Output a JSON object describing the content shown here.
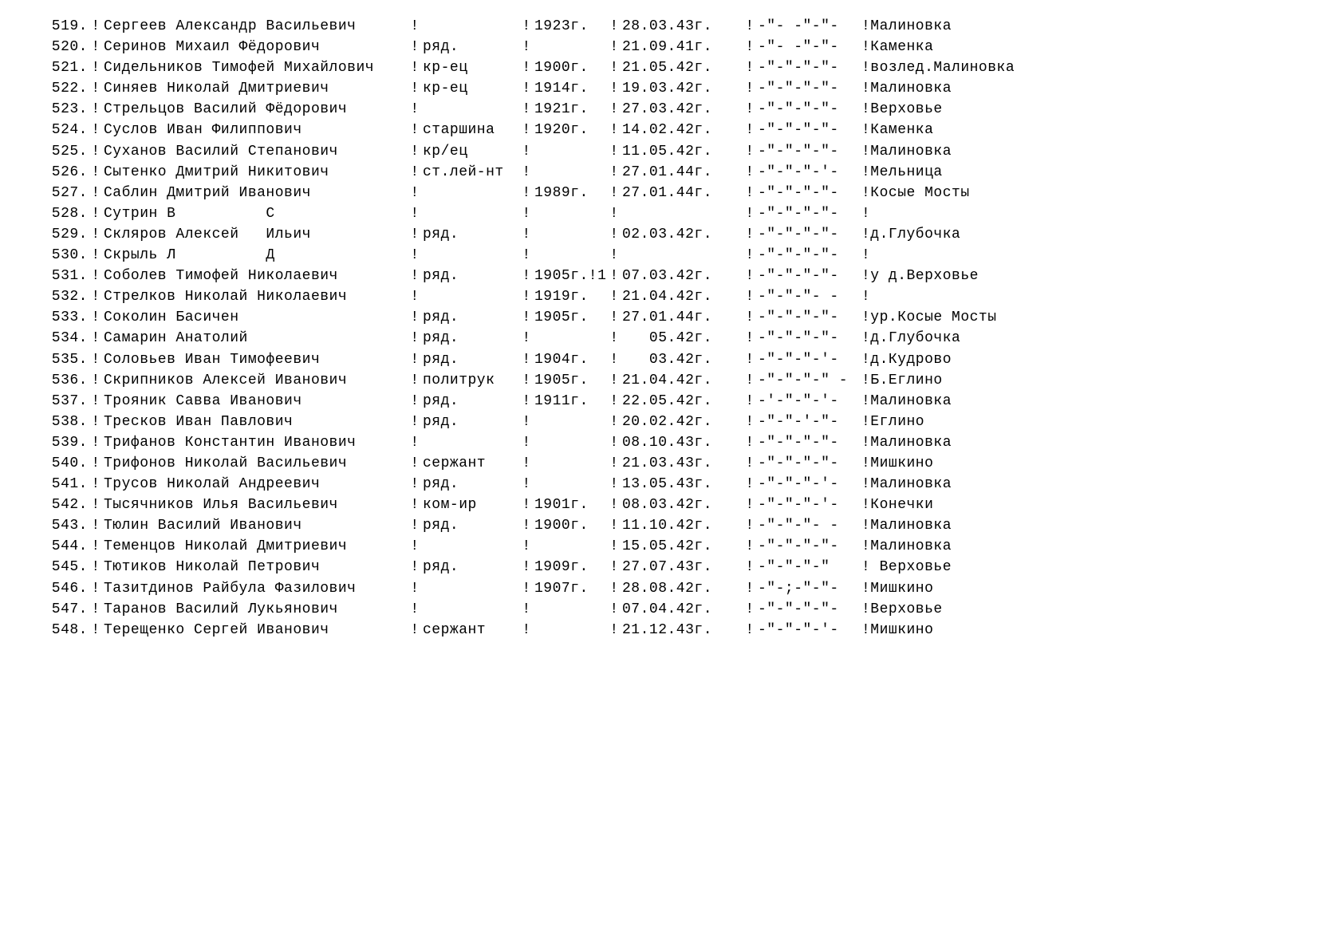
{
  "separator": "!",
  "table": {
    "rows": [
      {
        "num": "519.",
        "name": "Сергеев Александр Васильевич",
        "rank": "",
        "year": "1923г.",
        "date": "28.03.43г.",
        "ditto": "-\"- -\"-\"-",
        "place": "!Малиновка"
      },
      {
        "num": "520.",
        "name": "Серинов Михаил Фёдорович",
        "rank": "ряд.",
        "year": "",
        "date": "21.09.41г.",
        "ditto": "-\"- -\"-\"-",
        "place": "!Каменка"
      },
      {
        "num": "521.",
        "name": "Сидельников Тимофей Михайлович",
        "rank": "кр-ец",
        "year": "1900г.",
        "date": "21.05.42г.",
        "ditto": "-\"-\"-\"-\"-",
        "place": "!возлед.Малиновка"
      },
      {
        "num": "522.",
        "name": "Синяев Николай Дмитриевич",
        "rank": "кр-ец",
        "year": "1914г.",
        "date": "19.03.42г.",
        "ditto": "-\"-\"-\"-\"-",
        "place": "!Малиновка"
      },
      {
        "num": "523.",
        "name": "Стрельцов Василий Фёдорович",
        "rank": "",
        "year": "1921г.",
        "date": "27.03.42г.",
        "ditto": "-\"-\"-\"-\"-",
        "place": "!Верховье"
      },
      {
        "num": "524.",
        "name": "Суслов Иван Филиппович",
        "rank": "старшина",
        "year": "1920г.",
        "date": "14.02.42г.",
        "ditto": "-\"-\"-\"-\"-",
        "place": "!Каменка"
      },
      {
        "num": "525.",
        "name": "Суханов Василий Степанович",
        "rank": "кр/ец",
        "year": "",
        "date": "11.05.42г.",
        "ditto": "-\"-\"-\"-\"-",
        "place": "!Малиновка"
      },
      {
        "num": "526.",
        "name": "Сытенко Дмитрий Никитович",
        "rank": "ст.лей-нт",
        "year": "",
        "date": "27.01.44г.",
        "ditto": "-\"-\"-\"-'-",
        "place": "!Мельница"
      },
      {
        "num": "527.",
        "name": "Саблин Дмитрий Иванович",
        "rank": "",
        "year": "1989г.",
        "date": "27.01.44г.",
        "ditto": "-\"-\"-\"-\"-",
        "place": "!Косые Мосты"
      },
      {
        "num": "528.",
        "name": "Сутрин В          С",
        "rank": "",
        "year": "",
        "date": "",
        "ditto": "-\"-\"-\"-\"-",
        "place": "!"
      },
      {
        "num": "529.",
        "name": "Скляров Алексей   Ильич",
        "rank": "ряд.",
        "year": "",
        "date": "02.03.42г.",
        "ditto": "-\"-\"-\"-\"-",
        "place": "!д.Глубочка"
      },
      {
        "num": "530.",
        "name": "Скрыль Л          Д",
        "rank": "",
        "year": "",
        "date": "",
        "ditto": "-\"-\"-\"-\"-",
        "place": "!"
      },
      {
        "num": "531.",
        "name": "Соболев Тимофей Николаевич",
        "rank": "ряд.",
        "year": "1905г.!1",
        "date": "07.03.42г.",
        "ditto": "-\"-\"-\"-\"-",
        "place": "!у д.Верховье"
      },
      {
        "num": "532.",
        "name": "Стрелков Николай Николаевич",
        "rank": "",
        "year": "1919г.",
        "date": "21.04.42г.",
        "ditto": "-\"-\"-\"- -",
        "place": "!"
      },
      {
        "num": "533.",
        "name": "Соколин Басичен",
        "rank": "ряд.",
        "year": "1905г.",
        "date": "27.01.44г.",
        "ditto": "-\"-\"-\"-\"-",
        "place": "!ур.Косые Мосты"
      },
      {
        "num": "534.",
        "name": "Самарин Анатолий",
        "rank": "ряд.",
        "year": "",
        "date": "   05.42г.",
        "ditto": "-\"-\"-\"-\"-",
        "place": "!д.Глубочка"
      },
      {
        "num": "535.",
        "name": "Соловьев Иван Тимофеевич",
        "rank": "ряд.",
        "year": "1904г.",
        "date": "   03.42г.",
        "ditto": "-\"-\"-\"-'-",
        "place": "!д.Кудрово"
      },
      {
        "num": "536.",
        "name": "Скрипников Алексей Иванович",
        "rank": "политрук",
        "year": "1905г.",
        "date": "21.04.42г.",
        "ditto": "-\"-\"-\"-\" -",
        "place": "!Б.Еглино"
      },
      {
        "num": "537.",
        "name": "Трояник Савва Иванович",
        "rank": "ряд.",
        "year": "1911г.",
        "date": "22.05.42г.",
        "ditto": "-'-\"-\"-'-",
        "place": "!Малиновка"
      },
      {
        "num": "538.",
        "name": "Тресков Иван Павлович",
        "rank": "ряд.",
        "year": "",
        "date": "20.02.42г.",
        "ditto": "-\"-\"-'-\"-",
        "place": "!Еглино"
      },
      {
        "num": "539.",
        "name": "Трифанов Константин Иванович",
        "rank": "",
        "year": "",
        "date": "08.10.43г.",
        "ditto": "-\"-\"-\"-\"-",
        "place": "!Малиновка"
      },
      {
        "num": "540.",
        "name": "Трифонов Николай Васильевич",
        "rank": "сержант",
        "year": "",
        "date": "21.03.43г.",
        "ditto": "-\"-\"-\"-\"-",
        "place": "!Мишкино"
      },
      {
        "num": "541.",
        "name": "Трусов Николай Андреевич",
        "rank": "ряд.",
        "year": "",
        "date": "13.05.43г.",
        "ditto": "-\"-\"-\"-'-",
        "place": "!Малиновка"
      },
      {
        "num": "542.",
        "name": "Тысячников Илья Васильевич",
        "rank": "ком-ир",
        "year": "1901г.",
        "date": "08.03.42г.",
        "ditto": "-\"-\"-\"-'-",
        "place": "!Конечки"
      },
      {
        "num": "543.",
        "name": "Тюлин Василий Иванович",
        "rank": "ряд.",
        "year": "1900г.",
        "date": "11.10.42г.",
        "ditto": "-\"-\"-\"- -",
        "place": "!Малиновка"
      },
      {
        "num": "544.",
        "name": "Теменцов Николай Дмитриевич",
        "rank": "",
        "year": "",
        "date": "15.05.42г.",
        "ditto": "-\"-\"-\"-\"-",
        "place": "!Малиновка"
      },
      {
        "num": "545.",
        "name": "Тютиков Николай Петрович",
        "rank": "ряд.",
        "year": "1909г.",
        "date": "27.07.43г.",
        "ditto": "-\"-\"-\"-\"",
        "place": "! Верховье"
      },
      {
        "num": "546.",
        "name": "Тазитдинов Райбула Фазилович",
        "rank": "",
        "year": "1907г.",
        "date": "28.08.42г.",
        "ditto": "-\"-;-\"-\"-",
        "place": "!Мишкино"
      },
      {
        "num": "547.",
        "name": "Таранов Василий Лукьянович",
        "rank": "",
        "year": "",
        "date": "07.04.42г.",
        "ditto": "-\"-\"-\"-\"-",
        "place": "!Верховье"
      },
      {
        "num": "548.",
        "name": "Терещенко Сергей Иванович",
        "rank": "сержант",
        "year": "",
        "date": "21.12.43г.",
        "ditto": "-\"-\"-\"-'-",
        "place": "!Мишкино"
      }
    ]
  }
}
